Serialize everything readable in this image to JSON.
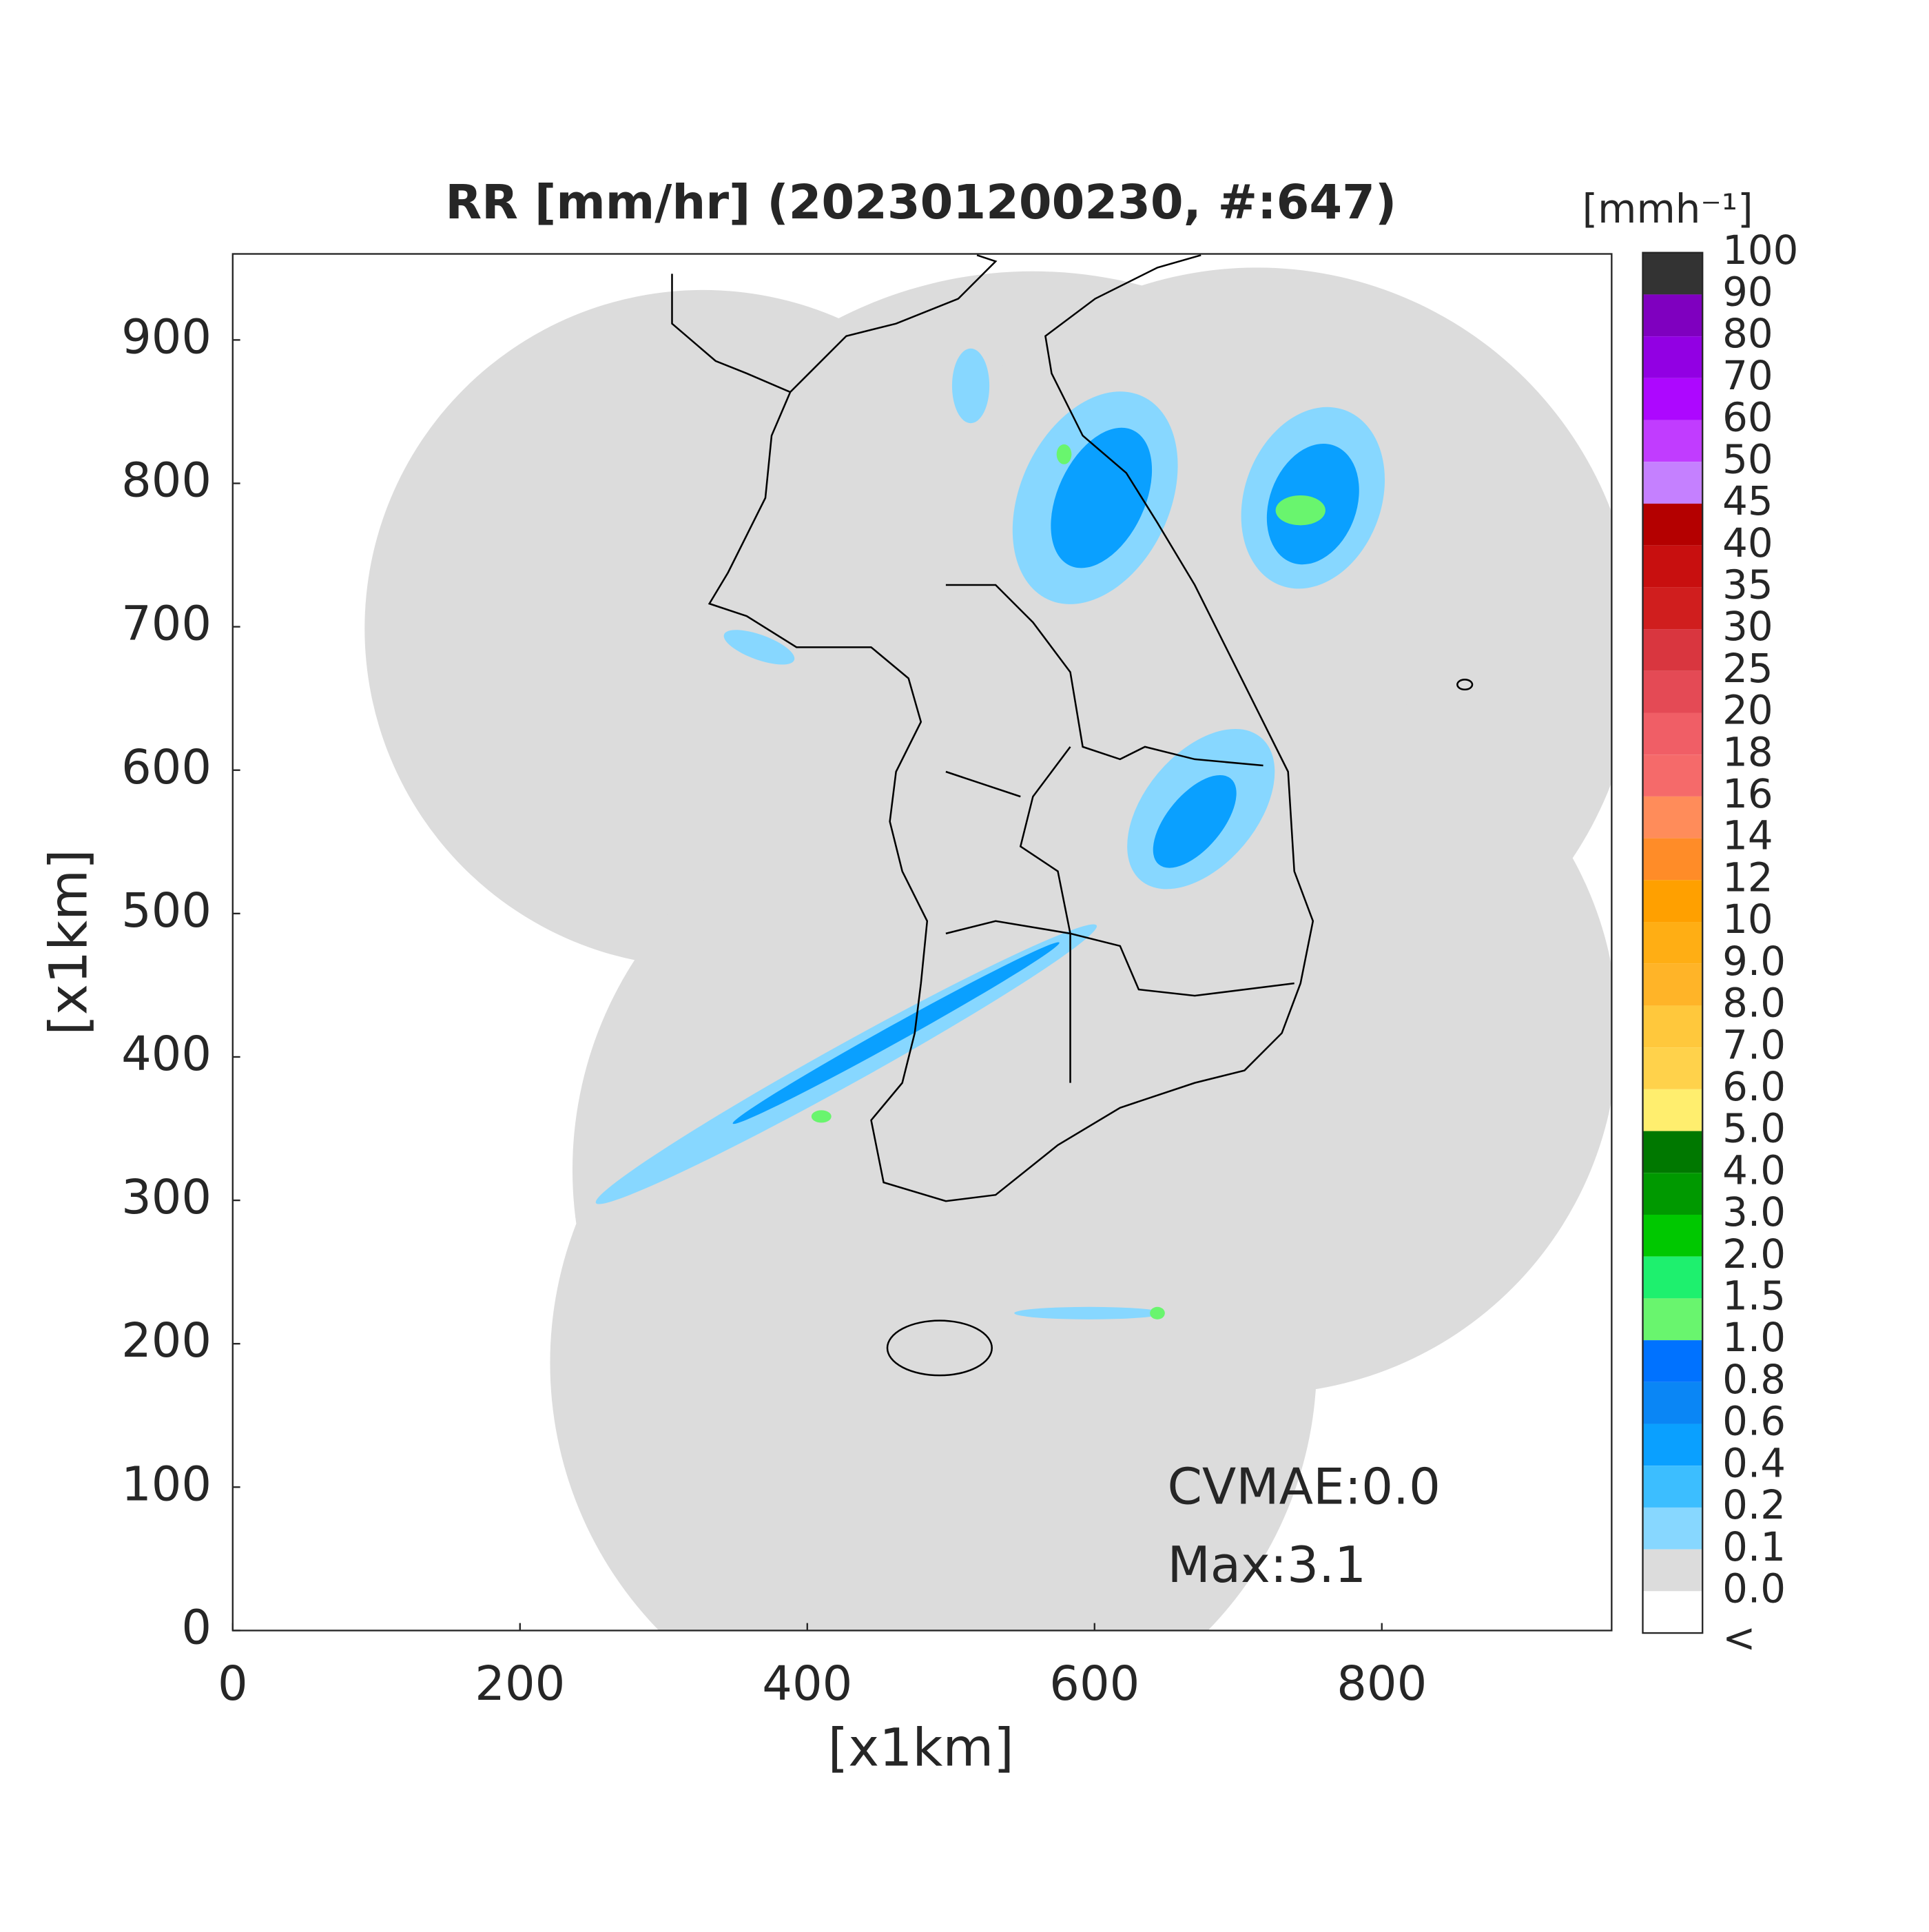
{
  "chart_data": {
    "type": "map",
    "title": "RR [mm/hr] (202301200230, #:647)",
    "x_label": "[x1km]",
    "y_label": "[x1km]",
    "xlim": [
      0,
      960
    ],
    "ylim": [
      0,
      960
    ],
    "xticks": [
      0,
      200,
      400,
      600,
      800
    ],
    "yticks": [
      0,
      100,
      200,
      300,
      400,
      500,
      600,
      700,
      800,
      900
    ],
    "annotations": [
      "CVMAE:0.0",
      "Max:3.1"
    ],
    "colorbar": {
      "label": "[mmh⁻¹]",
      "ticks": [
        100,
        90,
        80,
        70,
        60,
        50,
        45,
        40,
        35,
        30,
        25,
        20,
        18,
        16,
        14,
        12,
        10,
        {
          "value": 9,
          "label": "9.0"
        },
        {
          "value": 8,
          "label": "8.0"
        },
        {
          "value": 7,
          "label": "7.0"
        },
        {
          "value": 6,
          "label": "6.0"
        },
        {
          "value": 5,
          "label": "5.0"
        },
        {
          "value": 4,
          "label": "4.0"
        },
        {
          "value": 3,
          "label": "3.0"
        },
        {
          "value": 2,
          "label": "2.0"
        },
        1.5,
        {
          "value": 1,
          "label": "1.0"
        },
        0.8,
        0.6,
        0.4,
        0.2,
        0.1,
        {
          "value": 0,
          "label": "0.0"
        }
      ],
      "under_label": "<",
      "colors": [
        "#333333",
        "#7f00bf",
        "#9200e3",
        "#ad07ff",
        "#c13cff",
        "#c580ff",
        "#b40000",
        "#c80f0f",
        "#d01e1e",
        "#d9363f",
        "#e44a55",
        "#f05e66",
        "#f56a6a",
        "#ff8c5a",
        "#ff8c28",
        "#ffa000",
        "#ffae14",
        "#ffb428",
        "#ffc83c",
        "#ffd24b",
        "#ffee6e",
        "#007800",
        "#009900",
        "#00c800",
        "#1ef06e",
        "#69f56e",
        "#0072ff",
        "#0a86f5",
        "#0aa0ff",
        "#3cbeff",
        "#87d7ff",
        "#dcdcdc",
        "#ffffff"
      ]
    }
  }
}
